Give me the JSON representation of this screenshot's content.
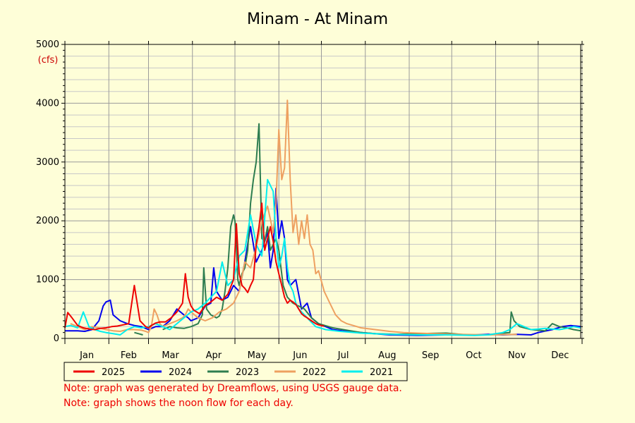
{
  "chart_data": {
    "type": "line",
    "title": "Minam - At Minam",
    "unit": "(cfs)",
    "y_ticks": [
      "0",
      "1000",
      "2000",
      "3000",
      "4000",
      "5000"
    ],
    "ylim": [
      0,
      5000
    ],
    "months": [
      "Jan",
      "Feb",
      "Mar",
      "Apr",
      "May",
      "Jun",
      "Jul",
      "Aug",
      "Sep",
      "Oct",
      "Nov",
      "Dec"
    ],
    "xlim_day": [
      1,
      365
    ],
    "grid": true,
    "legend_position": "bottom-left",
    "series": [
      {
        "name": "2025",
        "color": "#ee0000",
        "x": [
          1,
          3,
          6,
          10,
          14,
          18,
          22,
          26,
          30,
          34,
          38,
          42,
          46,
          50,
          54,
          58,
          60,
          62,
          65,
          68,
          72,
          76,
          80,
          84,
          86,
          88,
          90,
          92,
          96,
          100,
          104,
          108,
          112,
          116,
          120,
          122,
          124,
          126,
          128,
          130,
          132,
          134,
          136,
          138,
          140,
          142,
          144,
          146,
          148,
          150,
          152,
          154,
          156,
          158,
          160,
          162,
          164,
          166,
          168,
          170,
          172,
          175,
          178,
          180,
          182,
          184
        ],
        "y": [
          180,
          440,
          350,
          220,
          180,
          160,
          150,
          170,
          180,
          200,
          210,
          230,
          250,
          900,
          300,
          200,
          180,
          220,
          260,
          280,
          280,
          350,
          450,
          600,
          1100,
          700,
          550,
          480,
          420,
          560,
          620,
          700,
          650,
          750,
          1000,
          1950,
          1100,
          900,
          850,
          780,
          900,
          1000,
          1600,
          1900,
          2300,
          1500,
          1700,
          1900,
          1650,
          1300,
          1100,
          900,
          700,
          600,
          650,
          620,
          580,
          500,
          420,
          380,
          350,
          300,
          250,
          230,
          220,
          210
        ]
      },
      {
        "name": "2024",
        "color": "#0000ee",
        "x": [
          1,
          5,
          10,
          15,
          20,
          25,
          28,
          30,
          33,
          35,
          40,
          45,
          50,
          55,
          60,
          65,
          70,
          75,
          80,
          85,
          88,
          90,
          95,
          100,
          104,
          106,
          108,
          112,
          116,
          120,
          124,
          128,
          132,
          136,
          140,
          144,
          146,
          148,
          150,
          152,
          154,
          156,
          158,
          160,
          164,
          168,
          172,
          175,
          180,
          190,
          200,
          215,
          230,
          250,
          270,
          290,
          300,
          310,
          320,
          330,
          335,
          345,
          352,
          358,
          365
        ],
        "y": [
          130,
          130,
          130,
          120,
          150,
          300,
          550,
          620,
          650,
          400,
          300,
          250,
          220,
          200,
          150,
          200,
          200,
          300,
          500,
          400,
          350,
          300,
          350,
          550,
          600,
          1200,
          800,
          650,
          700,
          900,
          800,
          1300,
          1900,
          1300,
          1500,
          1800,
          1200,
          1500,
          2550,
          1700,
          2000,
          1700,
          1000,
          900,
          1000,
          500,
          600,
          350,
          250,
          150,
          120,
          90,
          60,
          50,
          60,
          60,
          70,
          60,
          70,
          60,
          100,
          150,
          200,
          220,
          200
        ]
      },
      {
        "name": "2023",
        "color": "#2e7d50",
        "x": [
          50,
          53,
          56,
          60,
          70,
          75,
          80,
          85,
          90,
          95,
          98,
          99,
          101,
          104,
          108,
          110,
          112,
          114,
          116,
          118,
          120,
          121,
          122,
          123,
          124,
          126,
          128,
          130,
          132,
          134,
          136,
          138,
          140,
          142,
          144,
          146,
          148,
          150,
          152,
          155,
          158,
          162,
          166,
          170,
          175,
          180,
          190,
          200,
          210,
          220,
          235,
          250,
          270,
          285,
          300,
          305,
          315,
          316,
          318,
          322,
          330,
          340,
          345,
          350,
          355,
          360,
          365
        ],
        "y": [
          100,
          80,
          60,
          null,
          150,
          200,
          180,
          170,
          200,
          250,
          400,
          1200,
          500,
          400,
          350,
          380,
          500,
          800,
          1200,
          1900,
          2100,
          2000,
          1600,
          1000,
          900,
          1100,
          1200,
          1500,
          2300,
          2700,
          3000,
          3650,
          1700,
          1650,
          1900,
          1500,
          1600,
          1700,
          1500,
          900,
          700,
          600,
          550,
          500,
          350,
          250,
          180,
          140,
          100,
          80,
          70,
          80,
          90,
          60,
          60,
          80,
          100,
          450,
          300,
          200,
          150,
          130,
          250,
          200,
          180,
          150,
          130
        ]
      },
      {
        "name": "2022",
        "color": "#eea060",
        "x": [
          5,
          10,
          15,
          20,
          25,
          30,
          35,
          40,
          45,
          50,
          55,
          58,
          60,
          62,
          64,
          66,
          68,
          70,
          75,
          80,
          84,
          86,
          88,
          90,
          95,
          100,
          105,
          110,
          115,
          120,
          124,
          128,
          132,
          136,
          140,
          144,
          148,
          150,
          152,
          154,
          156,
          158,
          160,
          162,
          164,
          166,
          168,
          170,
          172,
          174,
          176,
          178,
          180,
          184,
          188,
          192,
          196,
          200,
          210,
          220,
          230,
          240,
          260,
          280,
          300,
          320
        ],
        "y": [
          250,
          200,
          150,
          200,
          180,
          150,
          130,
          120,
          150,
          150,
          140,
          120,
          100,
          200,
          500,
          400,
          250,
          200,
          250,
          300,
          350,
          400,
          500,
          450,
          350,
          300,
          350,
          450,
          500,
          600,
          800,
          1300,
          1200,
          1550,
          2000,
          2250,
          1800,
          2300,
          3550,
          2700,
          2900,
          4050,
          2700,
          1800,
          2100,
          1600,
          2000,
          1700,
          2100,
          1600,
          1500,
          1100,
          1150,
          800,
          600,
          400,
          300,
          250,
          180,
          150,
          120,
          100,
          80,
          70,
          60,
          70
        ]
      },
      {
        "name": "2021",
        "color": "#00eeee",
        "x": [
          1,
          5,
          10,
          14,
          18,
          22,
          26,
          30,
          35,
          40,
          45,
          50,
          55,
          60,
          65,
          70,
          75,
          80,
          85,
          90,
          95,
          100,
          104,
          108,
          112,
          116,
          120,
          124,
          128,
          132,
          136,
          140,
          144,
          148,
          150,
          152,
          154,
          156,
          158,
          160,
          162,
          164,
          166,
          168,
          170,
          174,
          178,
          185,
          195,
          210,
          230,
          250,
          270,
          290,
          300,
          305,
          310,
          315,
          320,
          325,
          330,
          335,
          340,
          345,
          350,
          355,
          360,
          365
        ],
        "y": [
          200,
          220,
          180,
          450,
          200,
          150,
          120,
          100,
          80,
          60,
          150,
          200,
          180,
          200,
          250,
          200,
          150,
          250,
          350,
          450,
          500,
          600,
          700,
          800,
          1300,
          900,
          1000,
          1400,
          1500,
          2100,
          1600,
          1400,
          2700,
          2500,
          1700,
          1200,
          1400,
          1700,
          1200,
          900,
          800,
          600,
          500,
          450,
          400,
          300,
          200,
          150,
          120,
          90,
          70,
          60,
          60,
          50,
          60,
          80,
          100,
          150,
          250,
          200,
          150,
          160,
          170,
          160,
          150,
          170,
          200,
          180
        ]
      }
    ],
    "notes": [
      "Note: graph was generated by Dreamflows, using USGS gauge data.",
      "Note: graph shows the noon flow for each day."
    ]
  }
}
